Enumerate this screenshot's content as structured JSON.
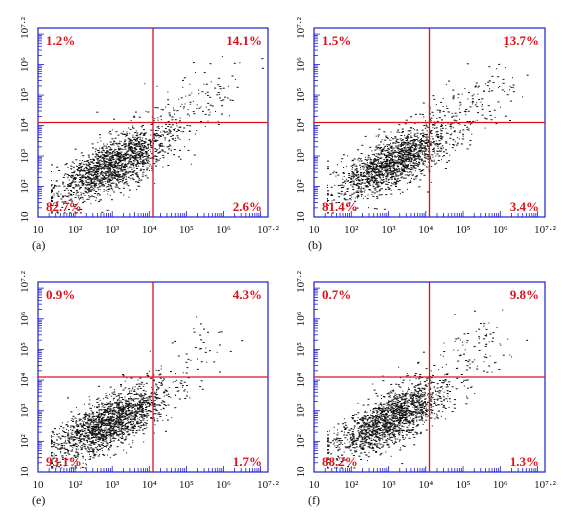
{
  "colors": {
    "frame": "#1f1fd0",
    "gate": "#e0101a",
    "quadrant_text": "#e0101a",
    "dots": "#111111",
    "text": "#111111"
  },
  "chart_data": [
    {
      "type": "scatter",
      "panel_label": "(a)",
      "xscale": "log",
      "yscale": "log",
      "xlim": [
        1,
        7.2
      ],
      "ylim": [
        1,
        7.2
      ],
      "x_ticks": [
        "10",
        "10²",
        "10³",
        "10⁴",
        "10⁵",
        "10⁶",
        "10⁷·²"
      ],
      "y_ticks": [
        "10",
        "10²",
        "10³",
        "10⁴",
        "10⁵",
        "10⁶",
        "10⁷·²"
      ],
      "gate": {
        "x": 4.1,
        "y": 4.1
      },
      "quadrants": {
        "upper_left": "1.2%",
        "upper_right": "14.1%",
        "lower_left": "82.7%",
        "lower_right": "2.6%"
      },
      "population": {
        "center": [
          3.0,
          2.7
        ],
        "spread": [
          0.75,
          0.6
        ],
        "tail_to": [
          6.0,
          5.5
        ],
        "tail_fraction": 0.14
      }
    },
    {
      "type": "scatter",
      "panel_label": "(b)",
      "xscale": "log",
      "yscale": "log",
      "xlim": [
        1,
        7.2
      ],
      "ylim": [
        1,
        7.2
      ],
      "x_ticks": [
        "10",
        "10²",
        "10³",
        "10⁴",
        "10⁵",
        "10⁶",
        "10⁷·²"
      ],
      "y_ticks": [
        "10",
        "10²",
        "10³",
        "10⁴",
        "10⁵",
        "10⁶",
        "10⁷·²"
      ],
      "gate": {
        "x": 4.1,
        "y": 4.1
      },
      "quadrants": {
        "upper_left": "1.5%",
        "upper_right": "13.7%",
        "lower_left": "81.4%",
        "lower_right": "3.4%"
      },
      "population": {
        "center": [
          3.1,
          2.8
        ],
        "spread": [
          0.75,
          0.6
        ],
        "tail_to": [
          6.0,
          5.6
        ],
        "tail_fraction": 0.14
      }
    },
    {
      "type": "scatter",
      "panel_label": "(e)",
      "xscale": "log",
      "yscale": "log",
      "xlim": [
        1,
        7.2
      ],
      "ylim": [
        1,
        7.2
      ],
      "x_ticks": [
        "10",
        "10²",
        "10³",
        "10⁴",
        "10⁵",
        "10⁶",
        "10⁷·²"
      ],
      "y_ticks": [
        "10",
        "10²",
        "10³",
        "10⁴",
        "10⁵",
        "10⁶",
        "10⁷·²"
      ],
      "gate": {
        "x": 4.1,
        "y": 4.1
      },
      "quadrants": {
        "upper_left": "0.9%",
        "upper_right": "4.3%",
        "lower_left": "93.1%",
        "lower_right": "1.7%"
      },
      "population": {
        "center": [
          2.9,
          2.6
        ],
        "spread": [
          0.75,
          0.6
        ],
        "tail_to": [
          5.8,
          5.3
        ],
        "tail_fraction": 0.06
      }
    },
    {
      "type": "scatter",
      "panel_label": "(f)",
      "xscale": "log",
      "yscale": "log",
      "xlim": [
        1,
        7.2
      ],
      "ylim": [
        1,
        7.2
      ],
      "x_ticks": [
        "10",
        "10²",
        "10³",
        "10⁴",
        "10⁵",
        "10⁶",
        "10⁷·²"
      ],
      "y_ticks": [
        "10",
        "10²",
        "10³",
        "10⁴",
        "10⁵",
        "10⁶",
        "10⁷·²"
      ],
      "gate": {
        "x": 4.1,
        "y": 4.1
      },
      "quadrants": {
        "upper_left": "0.7%",
        "upper_right": "9.8%",
        "lower_left": "88.2%",
        "lower_right": "1.3%"
      },
      "population": {
        "center": [
          3.0,
          2.7
        ],
        "spread": [
          0.75,
          0.6
        ],
        "tail_to": [
          6.0,
          5.6
        ],
        "tail_fraction": 0.1
      }
    }
  ]
}
